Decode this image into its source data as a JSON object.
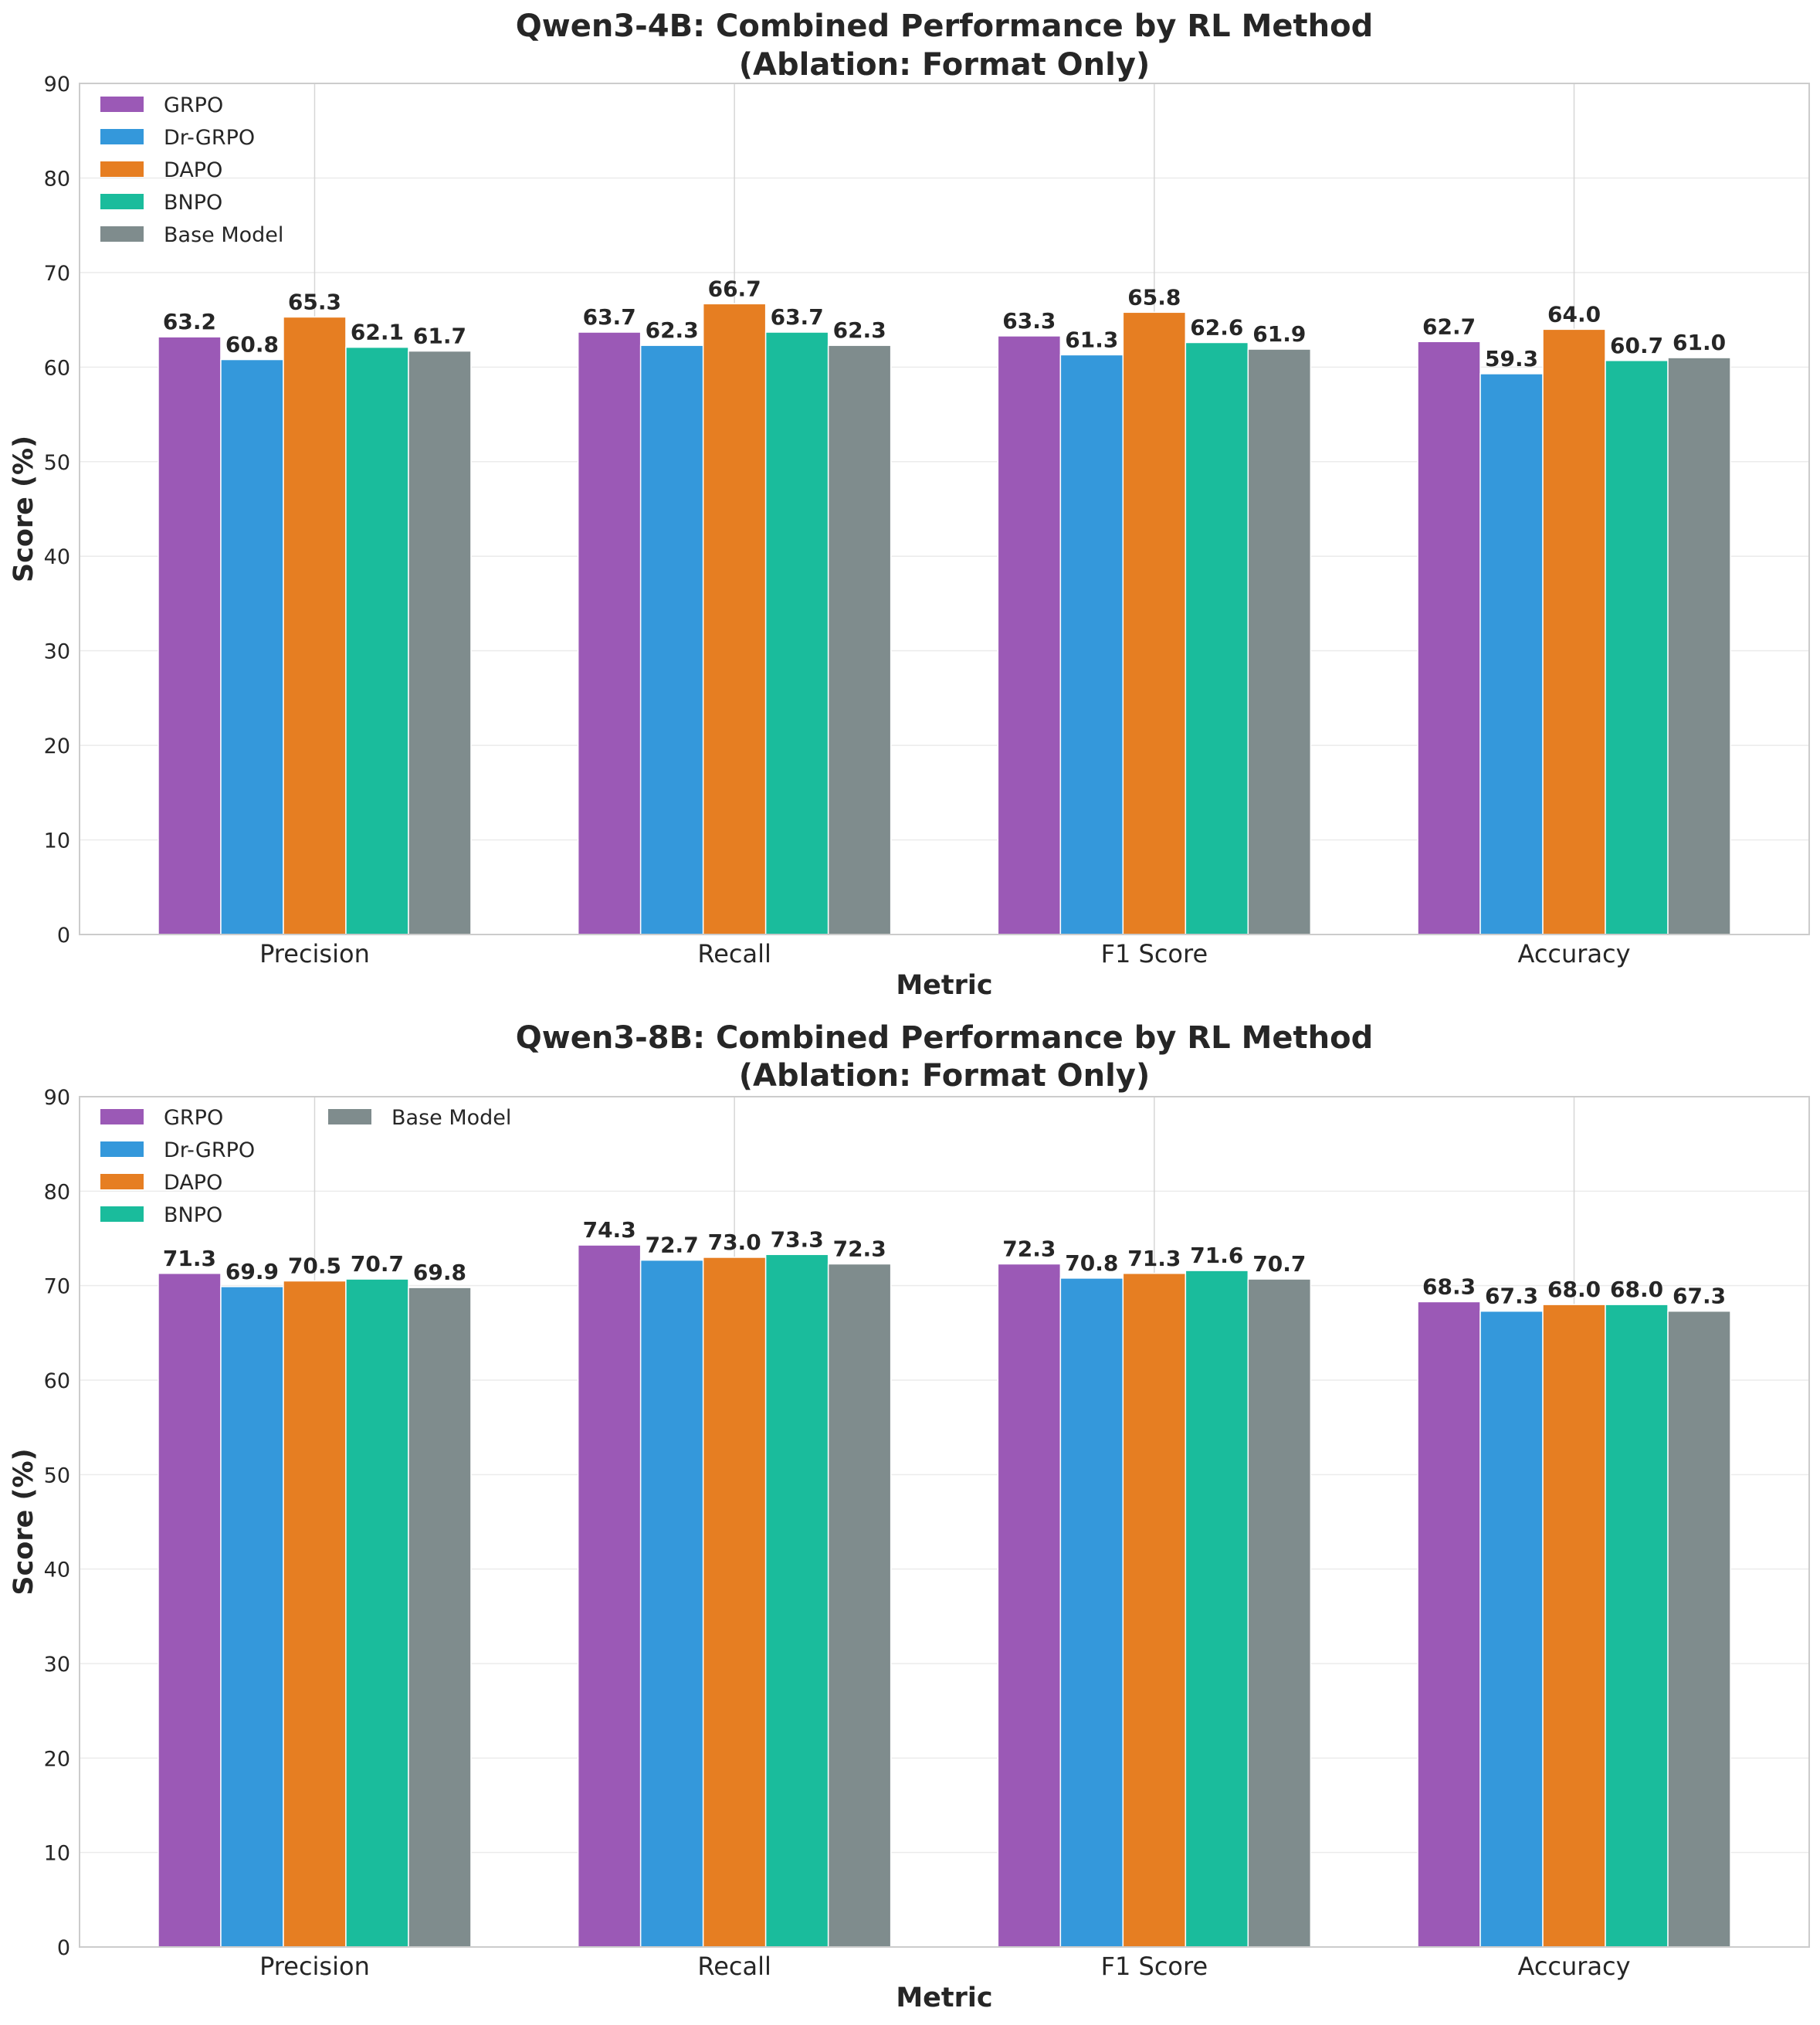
{
  "chart_data": [
    {
      "type": "bar",
      "title": "Qwen3-4B: Combined Performance by RL Method",
      "subtitle": "(Ablation: Format Only)",
      "xlabel": "Metric",
      "ylabel": "Score (%)",
      "ylim": [
        0,
        90
      ],
      "yticks": [
        0,
        10,
        20,
        30,
        40,
        50,
        60,
        70,
        80,
        90
      ],
      "grid": true,
      "legend_position": "top-left",
      "legend_columns": 1,
      "categories": [
        "Precision",
        "Recall",
        "F1 Score",
        "Accuracy"
      ],
      "series": [
        {
          "name": "GRPO",
          "color": "#9b59b6",
          "values": [
            63.2,
            63.7,
            63.3,
            62.7
          ],
          "labels": [
            "63.2",
            "63.7",
            "63.3",
            "62.7"
          ]
        },
        {
          "name": "Dr-GRPO",
          "color": "#3498db",
          "values": [
            60.8,
            62.3,
            61.3,
            59.3
          ],
          "labels": [
            "60.8",
            "62.3",
            "61.3",
            "59.3"
          ]
        },
        {
          "name": "DAPO",
          "color": "#e67e22",
          "values": [
            65.3,
            66.7,
            65.8,
            64.0
          ],
          "labels": [
            "65.3",
            "66.7",
            "65.8",
            "64.0"
          ]
        },
        {
          "name": "BNPO",
          "color": "#1abc9c",
          "values": [
            62.1,
            63.7,
            62.6,
            60.7
          ],
          "labels": [
            "62.1",
            "63.7",
            "62.6",
            "60.7"
          ]
        },
        {
          "name": "Base Model",
          "color": "#7f8c8d",
          "values": [
            61.7,
            62.3,
            61.9,
            61.0
          ],
          "labels": [
            "61.7",
            "62.3",
            "61.9",
            "61.0"
          ]
        }
      ]
    },
    {
      "type": "bar",
      "title": "Qwen3-8B: Combined Performance by RL Method",
      "subtitle": "(Ablation: Format Only)",
      "xlabel": "Metric",
      "ylabel": "Score (%)",
      "ylim": [
        0,
        90
      ],
      "yticks": [
        0,
        10,
        20,
        30,
        40,
        50,
        60,
        70,
        80,
        90
      ],
      "grid": true,
      "legend_position": "top-left",
      "legend_columns": 2,
      "categories": [
        "Precision",
        "Recall",
        "F1 Score",
        "Accuracy"
      ],
      "series": [
        {
          "name": "GRPO",
          "color": "#9b59b6",
          "values": [
            71.3,
            74.3,
            72.3,
            68.3
          ],
          "labels": [
            "71.3",
            "74.3",
            "72.3",
            "68.3"
          ]
        },
        {
          "name": "Dr-GRPO",
          "color": "#3498db",
          "values": [
            69.9,
            72.7,
            70.8,
            67.3
          ],
          "labels": [
            "69.9",
            "72.7",
            "70.8",
            "67.3"
          ]
        },
        {
          "name": "DAPO",
          "color": "#e67e22",
          "values": [
            70.5,
            73.0,
            71.3,
            68.0
          ],
          "labels": [
            "70.5",
            "73.0",
            "71.3",
            "68.0"
          ]
        },
        {
          "name": "BNPO",
          "color": "#1abc9c",
          "values": [
            70.7,
            73.3,
            71.6,
            68.0
          ],
          "labels": [
            "70.7",
            "73.3",
            "71.6",
            "68.0"
          ]
        },
        {
          "name": "Base Model",
          "color": "#7f8c8d",
          "values": [
            69.8,
            72.3,
            70.7,
            67.3
          ],
          "labels": [
            "69.8",
            "72.3",
            "70.7",
            "67.3"
          ]
        }
      ]
    }
  ]
}
